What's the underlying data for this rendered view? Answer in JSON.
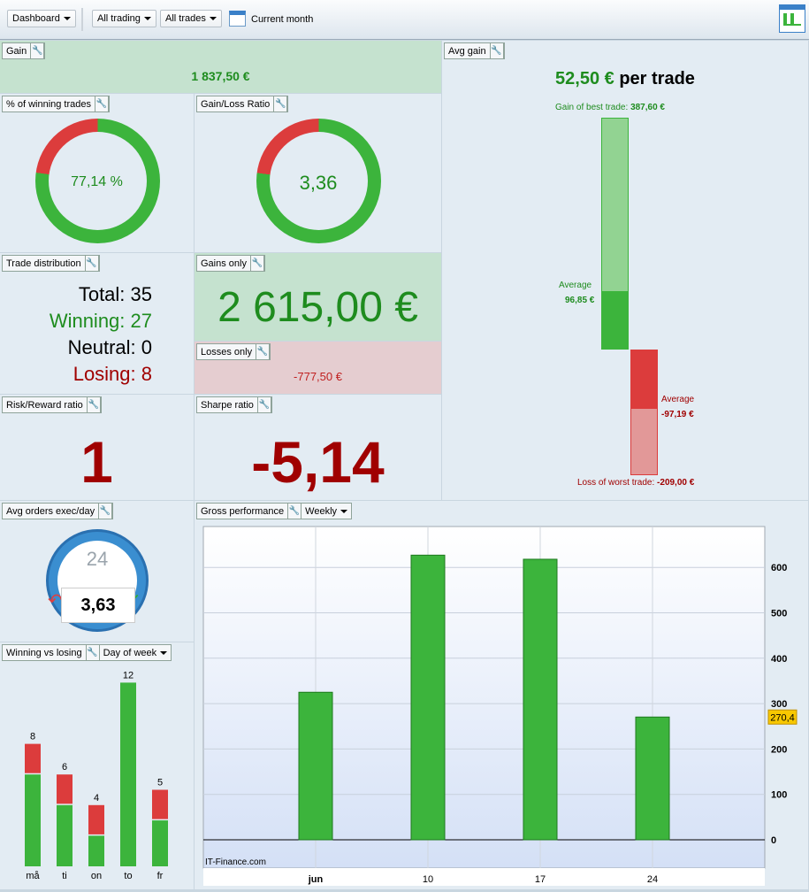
{
  "toolbar": {
    "dashboard": "Dashboard",
    "trading": "All trading",
    "trades": "All trades",
    "period": "Current month"
  },
  "gain": {
    "title": "Gain",
    "value": "1 837,50 €"
  },
  "winning_pct": {
    "title": "% of winning trades",
    "value": "77,14 %",
    "fraction": 0.7714
  },
  "gl_ratio": {
    "title": "Gain/Loss Ratio",
    "value": "3,36",
    "fraction": 0.7706
  },
  "distribution": {
    "title": "Trade distribution",
    "total": "Total: 35",
    "winning": "Winning: 27",
    "neutral": "Neutral: 0",
    "losing": "Losing: 8"
  },
  "gains_only": {
    "title": "Gains only",
    "value": "2 615,00 €"
  },
  "losses_only": {
    "title": "Losses only",
    "value": "-777,50 €"
  },
  "risk_reward": {
    "title": "Risk/Reward ratio",
    "value": "1"
  },
  "sharpe": {
    "title": "Sharpe ratio",
    "value": "-5,14"
  },
  "avg_gain": {
    "title": "Avg gain",
    "value": "52,50 €",
    "suffix": "per trade",
    "best_label": "Gain of best trade:",
    "best": "387,60 €",
    "avg_label": "Average",
    "avg_win": "96,85 €",
    "avg_loss": "-97,19 €",
    "worst_label": "Loss of worst trade:",
    "worst": "-209,00 €",
    "best_num": 387.6,
    "avg_win_num": 96.85,
    "avg_loss_num": 97.19,
    "worst_num": 209.0
  },
  "avg_orders": {
    "title": "Avg orders exec/day",
    "clock": "24",
    "value": "3,63"
  },
  "wvl": {
    "title": "Winning vs losing",
    "mode": "Day of week"
  },
  "gross": {
    "title": "Gross performance",
    "mode": "Weekly",
    "watermark": "IT-Finance.com",
    "last_label": "270,4"
  },
  "colors": {
    "green": "#3cb43c",
    "red": "#dc3c3c",
    "dark_green": "#1e8c1e",
    "dark_red": "#a00000"
  },
  "chart_data": [
    {
      "type": "bar",
      "title": "Winning vs losing",
      "categories": [
        "må",
        "ti",
        "on",
        "to",
        "fr"
      ],
      "series": [
        {
          "name": "Winning",
          "values": [
            6,
            4,
            2,
            12,
            3
          ]
        },
        {
          "name": "Losing",
          "values": [
            2,
            2,
            2,
            0,
            2
          ]
        }
      ],
      "totals": [
        "8",
        "6",
        "4",
        "12",
        "5"
      ]
    },
    {
      "type": "bar",
      "title": "Gross performance",
      "categories": [
        "jun",
        "10",
        "17",
        "24"
      ],
      "values": [
        325,
        627,
        618,
        270.4
      ],
      "ylim": [
        0,
        690
      ],
      "yticks": [
        "0",
        "100",
        "200",
        "300",
        "400",
        "500",
        "600"
      ],
      "grid": true
    }
  ]
}
